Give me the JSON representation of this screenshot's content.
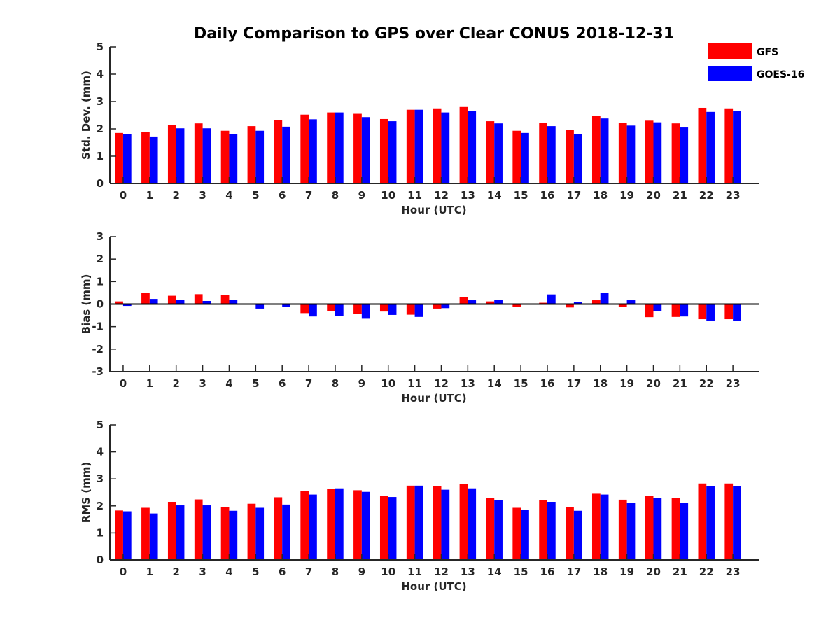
{
  "title": "Daily Comparison to GPS over Clear CONUS 2018-12-31",
  "legend": [
    {
      "name": "GFS",
      "color": "#ff0000"
    },
    {
      "name": "GOES-16",
      "color": "#0000ff"
    }
  ],
  "chart_data": [
    {
      "type": "bar",
      "xlabel": "Hour (UTC)",
      "ylabel": "Std. Dev. (mm)",
      "ylim": [
        0,
        5
      ],
      "yticks": [
        0,
        1,
        2,
        3,
        4,
        5
      ],
      "categories": [
        "0",
        "1",
        "2",
        "3",
        "4",
        "5",
        "6",
        "7",
        "8",
        "9",
        "10",
        "11",
        "12",
        "13",
        "14",
        "15",
        "16",
        "17",
        "18",
        "19",
        "20",
        "21",
        "22",
        "23"
      ],
      "series": [
        {
          "name": "GFS",
          "color": "#ff0000",
          "values": [
            1.85,
            1.88,
            2.13,
            2.2,
            1.93,
            2.1,
            2.33,
            2.52,
            2.6,
            2.55,
            2.36,
            2.7,
            2.75,
            2.8,
            2.28,
            1.93,
            2.23,
            1.95,
            2.47,
            2.23,
            2.3,
            2.2,
            2.77,
            2.75
          ]
        },
        {
          "name": "GOES-16",
          "color": "#0000ff",
          "values": [
            1.8,
            1.72,
            2.02,
            2.02,
            1.82,
            1.93,
            2.08,
            2.35,
            2.6,
            2.43,
            2.28,
            2.7,
            2.6,
            2.66,
            2.2,
            1.85,
            2.1,
            1.82,
            2.38,
            2.12,
            2.24,
            2.05,
            2.62,
            2.65
          ]
        }
      ]
    },
    {
      "type": "bar",
      "xlabel": "Hour (UTC)",
      "ylabel": "Bias (mm)",
      "ylim": [
        -3,
        3
      ],
      "yticks": [
        -3,
        -2,
        -1,
        0,
        1,
        2,
        3
      ],
      "zero_line": true,
      "categories": [
        "0",
        "1",
        "2",
        "3",
        "4",
        "5",
        "6",
        "7",
        "8",
        "9",
        "10",
        "11",
        "12",
        "13",
        "14",
        "15",
        "16",
        "17",
        "18",
        "19",
        "20",
        "21",
        "22",
        "23"
      ],
      "series": [
        {
          "name": "GFS",
          "color": "#ff0000",
          "values": [
            0.12,
            0.5,
            0.37,
            0.44,
            0.4,
            0.0,
            0.0,
            -0.4,
            -0.32,
            -0.42,
            -0.33,
            -0.47,
            -0.2,
            0.3,
            0.12,
            -0.12,
            0.06,
            -0.15,
            0.17,
            -0.12,
            -0.58,
            -0.57,
            -0.67,
            -0.67
          ]
        },
        {
          "name": "GOES-16",
          "color": "#0000ff",
          "values": [
            -0.08,
            0.23,
            0.2,
            0.14,
            0.18,
            -0.2,
            -0.13,
            -0.55,
            -0.52,
            -0.65,
            -0.48,
            -0.57,
            -0.18,
            0.17,
            0.18,
            0.0,
            0.43,
            0.08,
            0.5,
            0.17,
            -0.32,
            -0.55,
            -0.73,
            -0.73
          ]
        }
      ]
    },
    {
      "type": "bar",
      "xlabel": "Hour (UTC)",
      "ylabel": "RMS (mm)",
      "ylim": [
        0,
        5
      ],
      "yticks": [
        0,
        1,
        2,
        3,
        4,
        5
      ],
      "categories": [
        "0",
        "1",
        "2",
        "3",
        "4",
        "5",
        "6",
        "7",
        "8",
        "9",
        "10",
        "11",
        "12",
        "13",
        "14",
        "15",
        "16",
        "17",
        "18",
        "19",
        "20",
        "21",
        "22",
        "23"
      ],
      "series": [
        {
          "name": "GFS",
          "color": "#ff0000",
          "values": [
            1.83,
            1.93,
            2.15,
            2.24,
            1.95,
            2.08,
            2.32,
            2.55,
            2.62,
            2.58,
            2.38,
            2.75,
            2.73,
            2.8,
            2.29,
            1.93,
            2.21,
            1.95,
            2.45,
            2.23,
            2.36,
            2.28,
            2.83,
            2.83
          ]
        },
        {
          "name": "GOES-16",
          "color": "#0000ff",
          "values": [
            1.8,
            1.72,
            2.02,
            2.02,
            1.82,
            1.93,
            2.05,
            2.42,
            2.65,
            2.52,
            2.33,
            2.75,
            2.6,
            2.65,
            2.21,
            1.85,
            2.15,
            1.82,
            2.42,
            2.12,
            2.29,
            2.1,
            2.73,
            2.73
          ]
        }
      ]
    }
  ]
}
